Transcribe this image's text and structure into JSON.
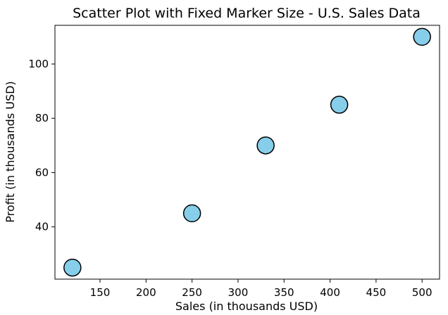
{
  "chart_data": {
    "type": "scatter",
    "title": "Scatter Plot with Fixed Marker Size - U.S. Sales Data",
    "x_label": "Sales (in thousands USD)",
    "y_label": "Profit (in thousands USD)",
    "x": [
      120,
      250,
      330,
      410,
      500
    ],
    "values": [
      25,
      45,
      70,
      85,
      110
    ],
    "color": "#87ceeb",
    "edge_color": "#000000",
    "xlim": [
      101,
      519
    ],
    "ylim": [
      20.75,
      114.25
    ],
    "xticks": [
      150,
      200,
      250,
      300,
      350,
      400,
      450,
      500
    ],
    "yticks": [
      40,
      60,
      80,
      100
    ],
    "grid": false
  }
}
